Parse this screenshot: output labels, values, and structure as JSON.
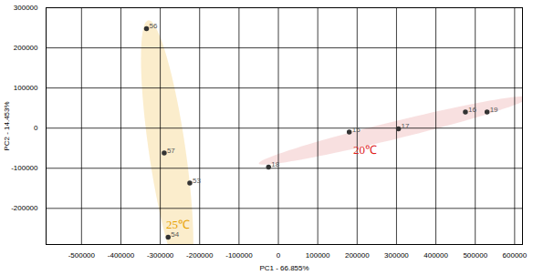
{
  "chart_data": {
    "type": "scatter",
    "x_label": "PC1 - 66.855%",
    "y_label": "PC2 - 14.453%",
    "xlim": [
      -590000,
      620000
    ],
    "ylim": [
      -290000,
      300000
    ],
    "xticks": [
      -500000,
      -400000,
      -300000,
      -200000,
      -100000,
      0,
      100000,
      200000,
      300000,
      400000,
      500000,
      600000
    ],
    "yticks": [
      -200000,
      -100000,
      0,
      100000,
      200000,
      300000
    ],
    "grid": true,
    "marker": "circle",
    "series": [
      {
        "color": "#f9e7bb",
        "x": [
          -335000,
          -290000,
          -225000,
          -280000
        ],
        "values": [
          248000,
          -62000,
          -137000,
          -272000
        ],
        "point_labels": [
          "56",
          "57",
          "53",
          "54"
        ]
      },
      {
        "color": "#f6d6d6",
        "x": [
          -25000,
          180000,
          305000,
          475000,
          530000
        ],
        "values": [
          -97000,
          -10000,
          -2000,
          40000,
          40000
        ],
        "point_labels": [
          "18",
          "15",
          "17",
          "16",
          "19"
        ]
      }
    ],
    "annotations": [
      {
        "text": "25℃",
        "x": -255000,
        "y": -240000,
        "color": "#e8a000"
      },
      {
        "text": "20℃",
        "x": 220000,
        "y": -55000,
        "color": "#e0201a"
      }
    ]
  }
}
